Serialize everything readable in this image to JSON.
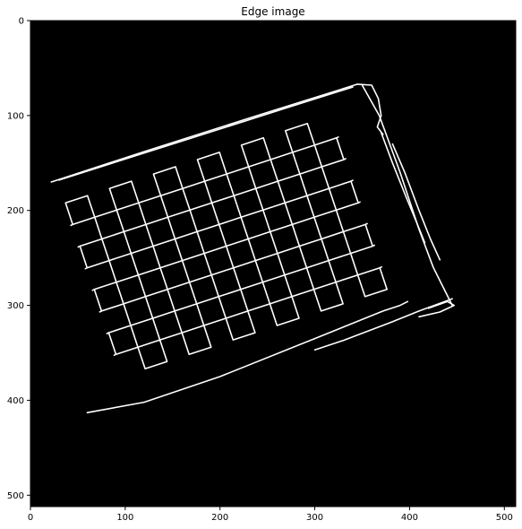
{
  "figure": {
    "title": "Edge image",
    "x_ticks": [
      {
        "label": "0",
        "value": 0
      },
      {
        "label": "100",
        "value": 100
      },
      {
        "label": "200",
        "value": 200
      },
      {
        "label": "300",
        "value": 300
      },
      {
        "label": "400",
        "value": 400
      },
      {
        "label": "500",
        "value": 500
      }
    ],
    "y_ticks": [
      {
        "label": "0",
        "value": 0
      },
      {
        "label": "100",
        "value": 100
      },
      {
        "label": "200",
        "value": 200
      },
      {
        "label": "300",
        "value": 300
      },
      {
        "label": "400",
        "value": 400
      },
      {
        "label": "500",
        "value": 500
      }
    ],
    "image_extent": {
      "x": [
        0,
        512
      ],
      "y": [
        0,
        512
      ]
    },
    "colors": {
      "image_background": "#000000",
      "edges": "#ffffff",
      "axes": "#000000"
    }
  }
}
